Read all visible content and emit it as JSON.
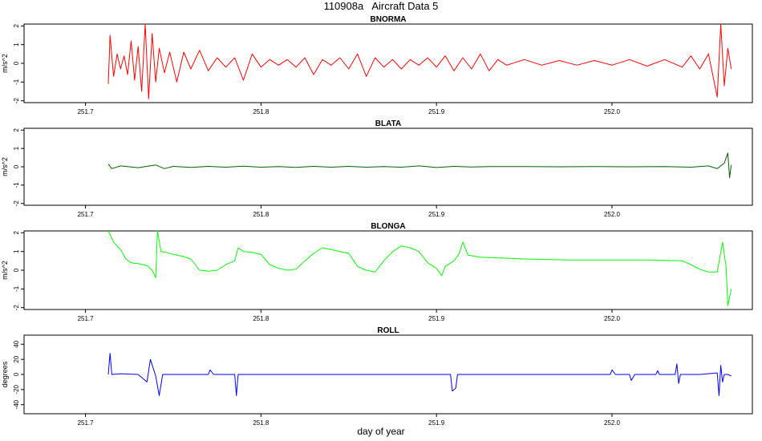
{
  "title": "110908a   Aircraft Data 5",
  "xlabel": "day of year",
  "chart_data": [
    {
      "type": "line",
      "title": "BNORMA",
      "ylabel": "m/s^2",
      "color": "#ff0000",
      "xlim": [
        251.665,
        252.08
      ],
      "ylim": [
        -2.1,
        2.1
      ],
      "x_ticks": [
        "251.7",
        "251.8",
        "251.9",
        "252.0"
      ],
      "x_tick_values": [
        251.7,
        251.8,
        251.9,
        252.0
      ],
      "y_ticks": [
        "-2",
        "-1",
        "0",
        "1",
        "2"
      ],
      "y_tick_values": [
        -2,
        -1,
        0,
        1,
        2
      ],
      "series": [
        {
          "values": [
            [
              251.713,
              -1.1
            ],
            [
              251.714,
              1.5
            ],
            [
              251.716,
              -0.7
            ],
            [
              251.718,
              0.5
            ],
            [
              251.72,
              -0.3
            ],
            [
              251.722,
              0.4
            ],
            [
              251.724,
              -0.6
            ],
            [
              251.726,
              1.2
            ],
            [
              251.728,
              -0.9
            ],
            [
              251.73,
              0.9
            ],
            [
              251.732,
              -1.5
            ],
            [
              251.734,
              2.1
            ],
            [
              251.736,
              -1.9
            ],
            [
              251.738,
              1.6
            ],
            [
              251.74,
              -1.0
            ],
            [
              251.742,
              0.8
            ],
            [
              251.745,
              -0.5
            ],
            [
              251.748,
              0.6
            ],
            [
              251.752,
              -1.0
            ],
            [
              251.756,
              0.6
            ],
            [
              251.76,
              -0.3
            ],
            [
              251.765,
              0.7
            ],
            [
              251.77,
              -0.4
            ],
            [
              251.775,
              0.3
            ],
            [
              251.78,
              -0.2
            ],
            [
              251.785,
              0.3
            ],
            [
              251.79,
              -0.9
            ],
            [
              251.795,
              0.5
            ],
            [
              251.8,
              -0.2
            ],
            [
              251.805,
              0.2
            ],
            [
              251.81,
              -0.1
            ],
            [
              251.815,
              0.2
            ],
            [
              251.82,
              -0.2
            ],
            [
              251.825,
              0.3
            ],
            [
              251.83,
              -0.6
            ],
            [
              251.835,
              0.2
            ],
            [
              251.84,
              -0.1
            ],
            [
              251.845,
              0.3
            ],
            [
              251.85,
              -0.3
            ],
            [
              251.855,
              0.5
            ],
            [
              251.86,
              -0.7
            ],
            [
              251.865,
              0.3
            ],
            [
              251.87,
              -0.2
            ],
            [
              251.875,
              0.2
            ],
            [
              251.88,
              -0.3
            ],
            [
              251.885,
              0.2
            ],
            [
              251.89,
              -0.1
            ],
            [
              251.895,
              0.3
            ],
            [
              251.9,
              -0.2
            ],
            [
              251.905,
              0.4
            ],
            [
              251.91,
              -0.4
            ],
            [
              251.915,
              0.3
            ],
            [
              251.92,
              -0.3
            ],
            [
              251.925,
              0.5
            ],
            [
              251.93,
              -0.4
            ],
            [
              251.935,
              0.2
            ],
            [
              251.94,
              -0.1
            ],
            [
              251.95,
              0.2
            ],
            [
              251.96,
              -0.1
            ],
            [
              251.97,
              0.15
            ],
            [
              251.98,
              -0.1
            ],
            [
              251.99,
              0.15
            ],
            [
              252.0,
              -0.1
            ],
            [
              252.01,
              0.2
            ],
            [
              252.02,
              -0.15
            ],
            [
              252.03,
              0.2
            ],
            [
              252.04,
              -0.2
            ],
            [
              252.045,
              0.4
            ],
            [
              252.05,
              -0.3
            ],
            [
              252.055,
              0.5
            ],
            [
              252.06,
              -1.8
            ],
            [
              252.062,
              2.1
            ],
            [
              252.064,
              -1.2
            ],
            [
              252.066,
              0.8
            ],
            [
              252.068,
              -0.3
            ]
          ]
        }
      ]
    },
    {
      "type": "line",
      "title": "BLATA",
      "ylabel": "m/s^2",
      "color": "#006400",
      "xlim": [
        251.665,
        252.08
      ],
      "ylim": [
        -2.1,
        2.1
      ],
      "x_ticks": [
        "251.7",
        "251.8",
        "251.9",
        "252.0"
      ],
      "x_tick_values": [
        251.7,
        251.8,
        251.9,
        252.0
      ],
      "y_ticks": [
        "-2",
        "-1",
        "0",
        "1",
        "2"
      ],
      "y_tick_values": [
        -2,
        -1,
        0,
        1,
        2
      ],
      "series": [
        {
          "values": [
            [
              251.713,
              0.15
            ],
            [
              251.715,
              -0.1
            ],
            [
              251.72,
              0.05
            ],
            [
              251.73,
              -0.05
            ],
            [
              251.74,
              0.1
            ],
            [
              251.745,
              -0.1
            ],
            [
              251.75,
              0.02
            ],
            [
              251.76,
              -0.03
            ],
            [
              251.77,
              0.02
            ],
            [
              251.78,
              -0.02
            ],
            [
              251.79,
              0.03
            ],
            [
              251.8,
              -0.02
            ],
            [
              251.81,
              0.01
            ],
            [
              251.82,
              -0.03
            ],
            [
              251.83,
              0.02
            ],
            [
              251.84,
              -0.02
            ],
            [
              251.85,
              0.02
            ],
            [
              251.86,
              -0.02
            ],
            [
              251.87,
              0.01
            ],
            [
              251.88,
              -0.02
            ],
            [
              251.89,
              0.05
            ],
            [
              251.9,
              -0.04
            ],
            [
              251.91,
              0.02
            ],
            [
              251.92,
              -0.01
            ],
            [
              251.93,
              0.01
            ],
            [
              251.95,
              0.01
            ],
            [
              251.97,
              0.0
            ],
            [
              251.99,
              0.01
            ],
            [
              252.01,
              0.0
            ],
            [
              252.03,
              0.01
            ],
            [
              252.045,
              -0.02
            ],
            [
              252.055,
              0.05
            ],
            [
              252.06,
              -0.1
            ],
            [
              252.064,
              0.2
            ],
            [
              252.066,
              0.75
            ],
            [
              252.067,
              -0.6
            ],
            [
              252.068,
              0.1
            ]
          ]
        }
      ]
    },
    {
      "type": "line",
      "title": "BLONGA",
      "ylabel": "m/s^2",
      "color": "#00ff00",
      "xlim": [
        251.665,
        252.08
      ],
      "ylim": [
        -2.1,
        2.1
      ],
      "x_ticks": [
        "251.7",
        "251.8",
        "251.9",
        "252.0"
      ],
      "x_tick_values": [
        251.7,
        251.8,
        251.9,
        252.0
      ],
      "y_ticks": [
        "-2",
        "-1",
        "0",
        "1",
        "2"
      ],
      "y_tick_values": [
        -2,
        -1,
        0,
        1,
        2
      ],
      "series": [
        {
          "values": [
            [
              251.713,
              2.1
            ],
            [
              251.716,
              1.5
            ],
            [
              251.72,
              1.1
            ],
            [
              251.723,
              0.6
            ],
            [
              251.726,
              0.4
            ],
            [
              251.73,
              0.35
            ],
            [
              251.735,
              0.25
            ],
            [
              251.738,
              0.0
            ],
            [
              251.74,
              -0.4
            ],
            [
              251.741,
              2.1
            ],
            [
              251.743,
              1.0
            ],
            [
              251.746,
              0.95
            ],
            [
              251.75,
              0.85
            ],
            [
              251.755,
              0.75
            ],
            [
              251.76,
              0.6
            ],
            [
              251.765,
              0.0
            ],
            [
              251.77,
              -0.05
            ],
            [
              251.775,
              0.0
            ],
            [
              251.78,
              0.3
            ],
            [
              251.785,
              0.5
            ],
            [
              251.787,
              1.2
            ],
            [
              251.79,
              1.0
            ],
            [
              251.795,
              0.95
            ],
            [
              251.8,
              0.85
            ],
            [
              251.805,
              0.3
            ],
            [
              251.81,
              0.1
            ],
            [
              251.815,
              0.0
            ],
            [
              251.82,
              0.05
            ],
            [
              251.825,
              0.5
            ],
            [
              251.83,
              0.9
            ],
            [
              251.835,
              1.2
            ],
            [
              251.84,
              1.1
            ],
            [
              251.845,
              1.0
            ],
            [
              251.85,
              0.9
            ],
            [
              251.855,
              0.2
            ],
            [
              251.86,
              0.0
            ],
            [
              251.865,
              -0.1
            ],
            [
              251.87,
              0.5
            ],
            [
              251.875,
              1.0
            ],
            [
              251.88,
              1.3
            ],
            [
              251.885,
              1.2
            ],
            [
              251.89,
              1.0
            ],
            [
              251.895,
              0.4
            ],
            [
              251.9,
              0.1
            ],
            [
              251.903,
              -0.3
            ],
            [
              251.905,
              0.2
            ],
            [
              251.91,
              0.5
            ],
            [
              251.913,
              0.9
            ],
            [
              251.915,
              1.5
            ],
            [
              251.918,
              0.8
            ],
            [
              251.925,
              0.7
            ],
            [
              251.95,
              0.6
            ],
            [
              251.975,
              0.55
            ],
            [
              252.0,
              0.55
            ],
            [
              252.02,
              0.55
            ],
            [
              252.04,
              0.5
            ],
            [
              252.045,
              0.3
            ],
            [
              252.05,
              0.05
            ],
            [
              252.055,
              -0.1
            ],
            [
              252.06,
              -0.1
            ],
            [
              252.063,
              1.5
            ],
            [
              252.065,
              0.2
            ],
            [
              252.066,
              -1.9
            ],
            [
              252.068,
              -1.0
            ]
          ]
        }
      ]
    },
    {
      "type": "line",
      "title": "ROLL",
      "ylabel": "degrees",
      "color": "#0000ff",
      "xlim": [
        251.665,
        252.08
      ],
      "ylim": [
        -52,
        52
      ],
      "x_ticks": [
        "251.7",
        "251.8",
        "251.9",
        "252.0"
      ],
      "x_tick_values": [
        251.7,
        251.8,
        251.9,
        252.0
      ],
      "y_ticks": [
        "-40",
        "-20",
        "0",
        "20",
        "40"
      ],
      "y_tick_values": [
        -40,
        -20,
        0,
        20,
        40
      ],
      "series": [
        {
          "values": [
            [
              251.713,
              0
            ],
            [
              251.714,
              28
            ],
            [
              251.715,
              0
            ],
            [
              251.72,
              1
            ],
            [
              251.73,
              0
            ],
            [
              251.735,
              -10
            ],
            [
              251.737,
              20
            ],
            [
              251.74,
              -2
            ],
            [
              251.742,
              -28
            ],
            [
              251.744,
              0
            ],
            [
              251.77,
              0
            ],
            [
              251.771,
              6
            ],
            [
              251.773,
              0
            ],
            [
              251.785,
              0
            ],
            [
              251.786,
              -28
            ],
            [
              251.787,
              0
            ],
            [
              251.8,
              0
            ],
            [
              251.83,
              0
            ],
            [
              251.86,
              0
            ],
            [
              251.88,
              0
            ],
            [
              251.908,
              0
            ],
            [
              251.909,
              -22
            ],
            [
              251.911,
              -18
            ],
            [
              251.912,
              0
            ],
            [
              251.95,
              0
            ],
            [
              251.999,
              0
            ],
            [
              252.0,
              6
            ],
            [
              252.002,
              0
            ],
            [
              252.01,
              0
            ],
            [
              252.011,
              -8
            ],
            [
              252.013,
              0
            ],
            [
              252.025,
              0
            ],
            [
              252.026,
              5
            ],
            [
              252.027,
              0
            ],
            [
              252.036,
              0
            ],
            [
              252.037,
              14
            ],
            [
              252.038,
              -12
            ],
            [
              252.039,
              0
            ],
            [
              252.05,
              0
            ],
            [
              252.06,
              2
            ],
            [
              252.061,
              -28
            ],
            [
              252.062,
              12
            ],
            [
              252.063,
              -10
            ],
            [
              252.064,
              0
            ],
            [
              252.066,
              0
            ],
            [
              252.068,
              -2
            ]
          ]
        }
      ]
    }
  ]
}
